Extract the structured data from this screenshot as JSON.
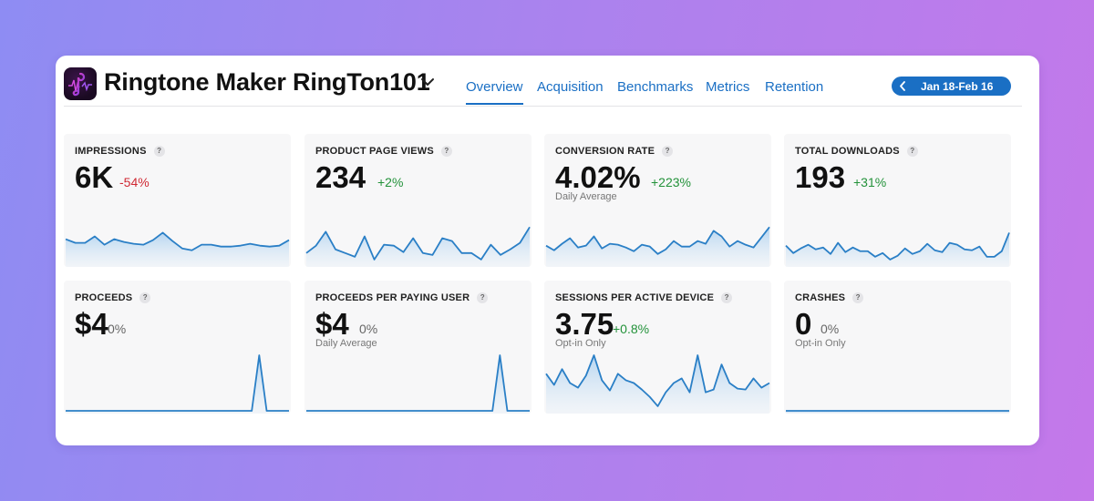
{
  "header": {
    "app_name": "Ringtone Maker RingTon101",
    "app_icon": "music-note-app-icon",
    "tabs": [
      {
        "label": "Overview",
        "active": true
      },
      {
        "label": "Acquisition",
        "active": false
      },
      {
        "label": "Benchmarks",
        "active": false
      },
      {
        "label": "Metrics",
        "active": false
      },
      {
        "label": "Retention",
        "active": false
      }
    ],
    "date_range": "Jan 18-Feb 16"
  },
  "colors": {
    "accent": "#1a6fc4",
    "positive": "#23923a",
    "negative": "#d02a35",
    "line": "#2a7fc6"
  },
  "cards": [
    {
      "label": "IMPRESSIONS",
      "value": "6K",
      "delta": "-54%",
      "trend": "neg",
      "sub": "",
      "series": [
        27,
        23,
        23,
        30,
        21,
        27,
        24,
        22,
        21,
        26,
        34,
        25,
        17,
        15,
        21,
        21,
        19,
        19,
        20,
        22,
        20,
        19,
        20,
        26
      ]
    },
    {
      "label": "PRODUCT PAGE VIEWS",
      "value": "234",
      "delta": "+2%",
      "trend": "pos",
      "sub": "",
      "series": [
        12,
        20,
        35,
        16,
        12,
        8,
        30,
        5,
        21,
        20,
        13,
        28,
        12,
        10,
        28,
        25,
        12,
        12,
        5,
        21,
        10,
        16,
        23,
        40
      ]
    },
    {
      "label": "CONVERSION RATE",
      "value": "4.02%",
      "delta": "+223%",
      "trend": "pos",
      "sub": "Daily Average",
      "series": [
        20,
        15,
        22,
        28,
        18,
        20,
        30,
        17,
        22,
        21,
        18,
        14,
        21,
        19,
        11,
        16,
        25,
        19,
        19,
        25,
        22,
        36,
        30,
        19,
        25,
        21,
        18,
        29,
        40
      ]
    },
    {
      "label": "TOTAL DOWNLOADS",
      "value": "193",
      "delta": "+31%",
      "trend": "pos",
      "sub": "",
      "series": [
        20,
        12,
        17,
        21,
        16,
        18,
        11,
        23,
        13,
        18,
        14,
        14,
        8,
        12,
        5,
        9,
        17,
        11,
        14,
        22,
        15,
        13,
        23,
        21,
        16,
        15,
        19,
        8,
        8,
        14,
        34
      ]
    },
    {
      "label": "PROCEEDS",
      "value": "$4",
      "delta": "0%",
      "trend": "neutral",
      "sub": "",
      "series": [
        0,
        0,
        0,
        0,
        0,
        0,
        0,
        0,
        0,
        0,
        0,
        0,
        0,
        0,
        0,
        0,
        0,
        0,
        0,
        0,
        0,
        0,
        0,
        0,
        0,
        0,
        60,
        0,
        0,
        0,
        0
      ]
    },
    {
      "label": "PROCEEDS PER PAYING USER",
      "value": "$4",
      "delta": "0%",
      "trend": "neutral",
      "sub": "Daily Average",
      "series": [
        0,
        0,
        0,
        0,
        0,
        0,
        0,
        0,
        0,
        0,
        0,
        0,
        0,
        0,
        0,
        0,
        0,
        0,
        0,
        0,
        0,
        0,
        0,
        0,
        0,
        0,
        60,
        0,
        0,
        0,
        0
      ]
    },
    {
      "label": "SESSIONS PER ACTIVE DEVICE",
      "value": "3.75",
      "delta": "+0.8%",
      "trend": "pos",
      "sub": "Opt-in Only",
      "series": [
        40,
        28,
        45,
        30,
        25,
        38,
        60,
        33,
        22,
        40,
        33,
        30,
        23,
        15,
        5,
        20,
        30,
        35,
        20,
        60,
        20,
        23,
        50,
        30,
        24,
        23,
        35,
        25,
        30
      ]
    },
    {
      "label": "CRASHES",
      "value": "0",
      "delta": "0%",
      "trend": "neutral",
      "sub": "Opt-in Only",
      "series": [
        0,
        0,
        0,
        0,
        0,
        0,
        0,
        0,
        0,
        0,
        0,
        0,
        0,
        0,
        0,
        0,
        0,
        0,
        0,
        0,
        0,
        0,
        0,
        0,
        0,
        0,
        0,
        0,
        0,
        0
      ]
    }
  ]
}
